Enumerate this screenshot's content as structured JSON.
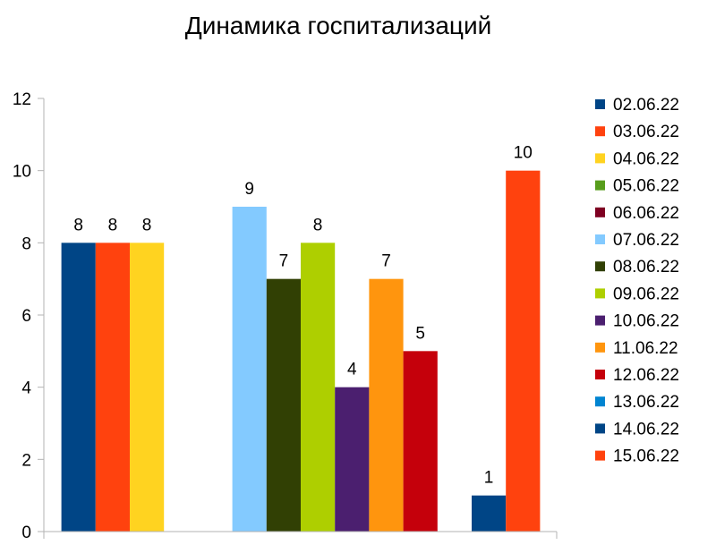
{
  "chart_data": {
    "type": "bar",
    "title": "Динамика госпитализаций",
    "ylim": [
      0,
      12
    ],
    "yticks": [
      0,
      2,
      4,
      6,
      8,
      10,
      12
    ],
    "grid": false,
    "legend_position": "right",
    "series": [
      {
        "name": "02.06.22",
        "color": "#004586",
        "value": 8
      },
      {
        "name": "03.06.22",
        "color": "#ff420e",
        "value": 8
      },
      {
        "name": "04.06.22",
        "color": "#ffd320",
        "value": 8
      },
      {
        "name": "05.06.22",
        "color": "#579d1c",
        "value": null
      },
      {
        "name": "06.06.22",
        "color": "#7e0021",
        "value": null
      },
      {
        "name": "07.06.22",
        "color": "#83caff",
        "value": 9
      },
      {
        "name": "08.06.22",
        "color": "#314004",
        "value": 7
      },
      {
        "name": "09.06.22",
        "color": "#aecf00",
        "value": 8
      },
      {
        "name": "10.06.22",
        "color": "#4b1f6f",
        "value": 4
      },
      {
        "name": "11.06.22",
        "color": "#ff950e",
        "value": 7
      },
      {
        "name": "12.06.22",
        "color": "#c5000b",
        "value": 5
      },
      {
        "name": "13.06.22",
        "color": "#0084d1",
        "value": null
      },
      {
        "name": "14.06.22",
        "color": "#004586",
        "value": 1
      },
      {
        "name": "15.06.22",
        "color": "#ff420e",
        "value": 10
      }
    ]
  }
}
